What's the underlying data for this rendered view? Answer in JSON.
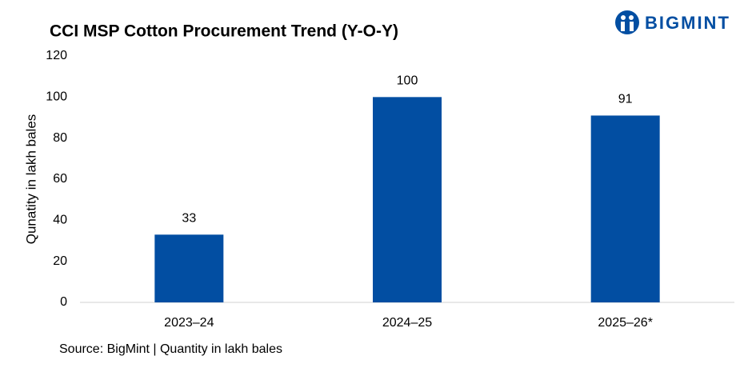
{
  "chart_data": {
    "type": "bar",
    "title": "CCI MSP Cotton Procurement Trend (Y-O-Y)",
    "logo": "BIGMINT",
    "y_label": "Qunatity in lakh bales",
    "source": "Source: BigMint | Quantity in lakh bales",
    "categories": [
      "2023–24",
      "2024–25",
      "2025–26*"
    ],
    "values": [
      33,
      100,
      91
    ],
    "color": "#024ea2",
    "ylim": [
      0,
      120
    ],
    "yticks": [
      0,
      20,
      40,
      60,
      80,
      100,
      120
    ],
    "grid": false
  }
}
